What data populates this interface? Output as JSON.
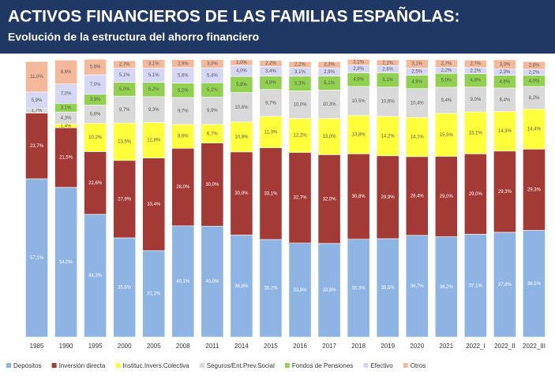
{
  "chart_data": {
    "type": "stacked_bar",
    "title": "ACTIVOS FINANCIEROS DE LAS FAMILIAS ESPAÑOLAS:",
    "subtitle": "Evolución de la estructura del ahorro financiero",
    "categories": [
      "1985",
      "1990",
      "1995",
      "2000",
      "2005",
      "2008",
      "2011",
      "2014",
      "2015",
      "2016",
      "2017",
      "2018",
      "2019",
      "2020",
      "2021",
      "2022_I",
      "2022_II",
      "2022_III"
    ],
    "ylim": [
      0,
      100
    ],
    "series": [
      {
        "name": "Depósitos",
        "color": "#8eb4e3",
        "values": [
          57.1,
          54.0,
          44.3,
          35.8,
          31.2,
          40.1,
          40.0,
          36.8,
          35.2,
          33.9,
          33.8,
          35.3,
          35.5,
          36.7,
          36.2,
          37.1,
          37.8,
          38.5
        ],
        "value_labels": [
          "57,1%",
          "54,0%",
          "44,3%",
          "35,8%",
          "31,2%",
          "40,1%",
          "40,0%",
          "36,8%",
          "35,2%",
          "33,9%",
          "33,8%",
          "35,3%",
          "35,5%",
          "36,7%",
          "36,2%",
          "37,1%",
          "37,8%",
          "38,5%"
        ]
      },
      {
        "name": "Inversión directa",
        "color": "#a33a35",
        "values": [
          23.7,
          21.5,
          22.6,
          27.9,
          33.4,
          28.0,
          30.0,
          30.0,
          33.1,
          32.7,
          32.0,
          30.8,
          29.9,
          28.4,
          29.0,
          29.0,
          29.3,
          29.3
        ],
        "value_labels": [
          "23,7%",
          "21,5%",
          "22,6%",
          "27,9%",
          "33,4%",
          "28,0%",
          "30,0%",
          "30,0%",
          "33,1%",
          "32,7%",
          "32,0%",
          "30,8%",
          "29,9%",
          "28,4%",
          "29,0%",
          "29,0%",
          "29,3%",
          "29,3%"
        ]
      },
      {
        "name": "Instituc.Invers.Colectiva",
        "color": "#ffff3c",
        "values": [
          null,
          1.4,
          10.2,
          13.5,
          12.8,
          8.6,
          6.7,
          10.8,
          11.3,
          12.2,
          13.0,
          13.8,
          14.2,
          14.1,
          15.5,
          15.1,
          14.3,
          14.4
        ],
        "value_labels": [
          null,
          "1,4%",
          "10,2%",
          "13,5%",
          "12,8%",
          "8,6%",
          "6,7%",
          "10,8%",
          "11,3%",
          "12,2%",
          "13,0%",
          "13,8%",
          "14,2%",
          "14,1%",
          "15,5%",
          "15,1%",
          "14,3%",
          "14,4%"
        ]
      },
      {
        "name": "Seguros/Ent.Prev.Social",
        "color": "#d9d9d9",
        "values": [
          1.7,
          4.3,
          6.6,
          9.7,
          9.3,
          9.7,
          9.9,
          10.6,
          9.7,
          10.0,
          10.3,
          10.5,
          10.6,
          10.4,
          9.4,
          9.0,
          8.4,
          8.2
        ],
        "value_labels": [
          "1,7%",
          "4,3%",
          "6,6%",
          "9,7%",
          "9,3%",
          "9,7%",
          "9,9%",
          "10,6%",
          "9,7%",
          "10,0%",
          "10,3%",
          "10,5%",
          "10,6%",
          "10,4%",
          "9,4%",
          "9,0%",
          "8,4%",
          "8,2%"
        ]
      },
      {
        "name": "Fondos de Pensiones",
        "color": "#92d050",
        "values": [
          null,
          3.1,
          3.9,
          5.0,
          5.2,
          5.2,
          5.1,
          5.8,
          4.9,
          5.3,
          5.1,
          4.9,
          5.1,
          4.9,
          5.0,
          4.8,
          4.6,
          4.0
        ],
        "value_labels": [
          null,
          "3,1%",
          "3,9%",
          "5,0%",
          "5,2%",
          "5,2%",
          "5,1%",
          "5,8%",
          "4,9%",
          "5,3%",
          "5,1%",
          "4,9%",
          "5,1%",
          "4,9%",
          "5,0%",
          "4,8%",
          "4,6%",
          "4,0%"
        ]
      },
      {
        "name": "Efectivo",
        "color": "#d6d6f5",
        "values": [
          5.9,
          7.0,
          7.0,
          5.1,
          5.1,
          5.6,
          5.4,
          4.0,
          3.4,
          3.1,
          2.9,
          2.8,
          2.6,
          2.5,
          2.2,
          2.2,
          2.3,
          2.2
        ],
        "value_labels": [
          "5,9%",
          "7,0%",
          "7,0%",
          "5,1%",
          "5,1%",
          "5,6%",
          "5,4%",
          "4,0%",
          "3,4%",
          "3,1%",
          "2,9%",
          "2,8%",
          "2,6%",
          "2,5%",
          "2,2%",
          "2,2%",
          "2,3%",
          "2,2%"
        ]
      },
      {
        "name": "Otros",
        "color": "#f4b89a",
        "values": [
          11.0,
          8.6,
          5.6,
          2.7,
          3.1,
          2.9,
          3.0,
          2.0,
          2.2,
          2.2,
          2.3,
          2.1,
          2.1,
          3.1,
          2.7,
          2.7,
          3.3,
          2.8
        ],
        "value_labels": [
          "11,0%",
          "8,6%",
          "5,6%",
          "2,7%",
          "3,1%",
          "2,9%",
          "3,0%",
          "2,0%",
          "2,2%",
          "2,2%",
          "2,3%",
          "2,1%",
          "2,1%",
          "3,1%",
          "2,7%",
          "2,7%",
          "3,3%",
          "2,8%"
        ]
      }
    ]
  }
}
